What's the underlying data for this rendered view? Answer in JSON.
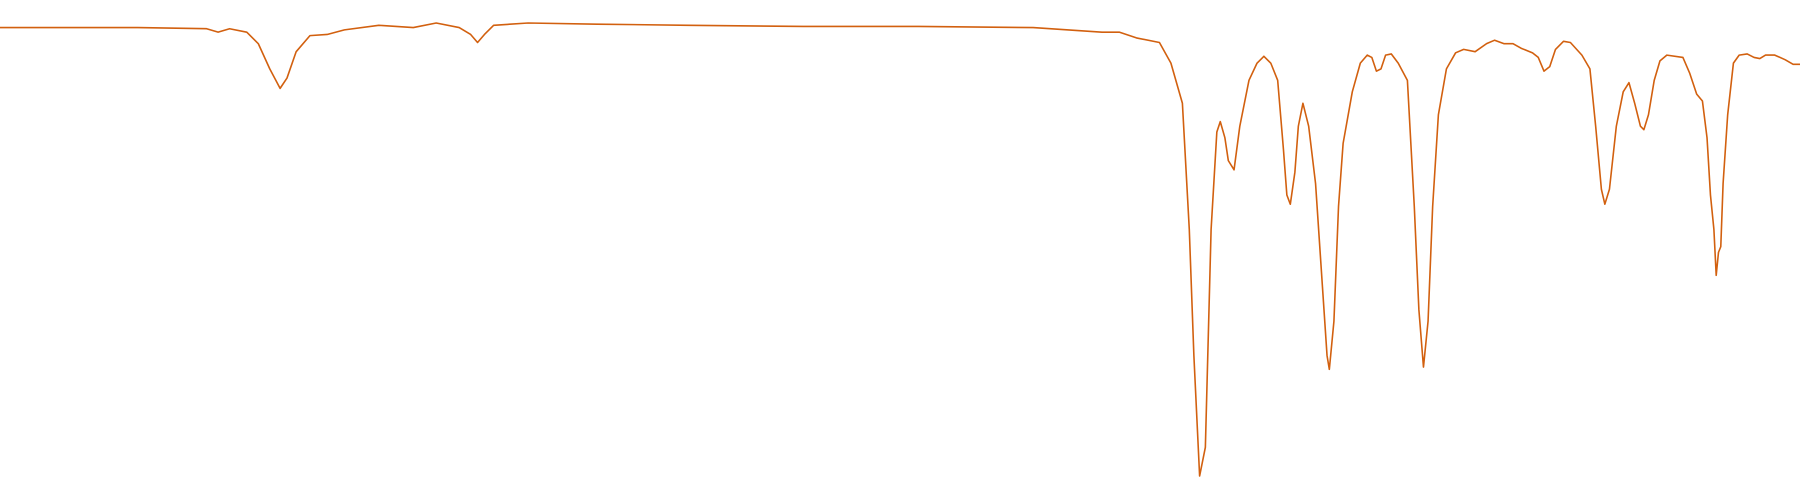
{
  "chart_data": {
    "type": "line",
    "color": "#d2600f",
    "x": [
      0,
      60,
      120,
      180,
      190,
      200,
      215,
      225,
      235,
      244,
      250,
      258,
      270,
      285,
      300,
      330,
      360,
      380,
      400,
      410,
      416,
      422,
      430,
      460,
      520,
      600,
      700,
      800,
      900,
      960,
      975,
      990,
      1010,
      1020,
      1030,
      1036,
      1040,
      1045,
      1050,
      1055,
      1060,
      1063,
      1067,
      1070,
      1075,
      1080,
      1088,
      1095,
      1101,
      1107,
      1113,
      1118,
      1121,
      1124,
      1128,
      1131,
      1135,
      1140,
      1146,
      1152,
      1156,
      1158,
      1162,
      1166,
      1170,
      1178,
      1185,
      1191,
      1195,
      1199,
      1203,
      1207,
      1212,
      1218,
      1226,
      1232,
      1236,
      1240,
      1244,
      1248,
      1253,
      1260,
      1268,
      1275,
      1285,
      1295,
      1302,
      1310,
      1318,
      1325,
      1335,
      1340,
      1345,
      1350,
      1355,
      1362,
      1368,
      1378,
      1385,
      1390,
      1395,
      1398,
      1402,
      1408,
      1414,
      1419,
      1424,
      1429,
      1432,
      1436,
      1441,
      1446,
      1452,
      1466,
      1472,
      1478,
      1483,
      1487,
      1490,
      1493,
      1495,
      1497,
      1499,
      1501,
      1505,
      1510,
      1515,
      1522,
      1528,
      1533,
      1538,
      1546,
      1555,
      1562,
      1568
    ],
    "values": [
      416,
      416,
      416,
      415,
      412,
      415,
      412,
      402,
      380,
      363,
      372,
      395,
      409,
      410,
      414,
      418,
      416,
      420,
      416,
      410,
      403,
      410,
      418,
      420,
      419,
      418,
      417,
      417,
      416,
      412,
      412,
      407,
      403,
      385,
      350,
      240,
      130,
      25,
      50,
      240,
      325,
      334,
      320,
      300,
      292,
      330,
      370,
      385,
      391,
      385,
      370,
      310,
      270,
      262,
      290,
      330,
      350,
      330,
      280,
      190,
      130,
      118,
      160,
      260,
      315,
      360,
      385,
      392,
      390,
      378,
      380,
      392,
      393,
      385,
      370,
      260,
      170,
      120,
      160,
      260,
      340,
      380,
      394,
      397,
      395,
      402,
      405,
      402,
      402,
      398,
      394,
      390,
      378,
      382,
      397,
      404,
      403,
      392,
      380,
      330,
      275,
      262,
      275,
      330,
      360,
      368,
      350,
      330,
      327,
      340,
      370,
      387,
      392,
      390,
      376,
      358,
      352,
      320,
      270,
      240,
      200,
      220,
      225,
      280,
      340,
      385,
      392,
      393,
      390,
      389,
      392,
      392,
      388,
      384,
      384
    ]
  }
}
